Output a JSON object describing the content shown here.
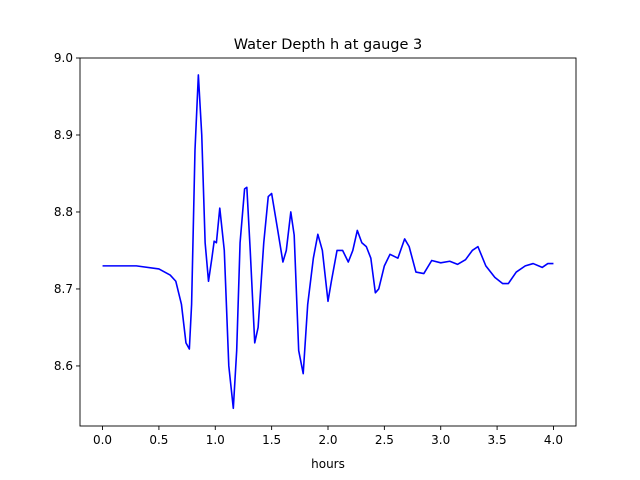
{
  "chart_data": {
    "type": "line",
    "title": "Water Depth h at gauge 3",
    "xlabel": "hours",
    "ylabel": "",
    "xlim": [
      -0.2,
      4.2
    ],
    "ylim": [
      8.522,
      9.0
    ],
    "xticks": [
      0.0,
      0.5,
      1.0,
      1.5,
      2.0,
      2.5,
      3.0,
      3.5,
      4.0
    ],
    "xtick_labels": [
      "0.0",
      "0.5",
      "1.0",
      "1.5",
      "2.0",
      "2.5",
      "3.0",
      "3.5",
      "4.0"
    ],
    "yticks": [
      8.6,
      8.7,
      8.8,
      8.9,
      9.0
    ],
    "ytick_labels": [
      "8.6",
      "8.7",
      "8.8",
      "8.9",
      "9.0"
    ],
    "grid": false,
    "series": [
      {
        "color": "#0000ff",
        "points": [
          [
            0.0,
            8.73
          ],
          [
            0.3,
            8.73
          ],
          [
            0.5,
            8.726
          ],
          [
            0.6,
            8.718
          ],
          [
            0.65,
            8.71
          ],
          [
            0.7,
            8.68
          ],
          [
            0.74,
            8.63
          ],
          [
            0.77,
            8.622
          ],
          [
            0.79,
            8.68
          ],
          [
            0.82,
            8.88
          ],
          [
            0.85,
            8.978
          ],
          [
            0.88,
            8.9
          ],
          [
            0.91,
            8.76
          ],
          [
            0.94,
            8.71
          ],
          [
            0.97,
            8.74
          ],
          [
            0.99,
            8.762
          ],
          [
            1.01,
            8.76
          ],
          [
            1.04,
            8.805
          ],
          [
            1.08,
            8.75
          ],
          [
            1.12,
            8.6
          ],
          [
            1.16,
            8.545
          ],
          [
            1.19,
            8.62
          ],
          [
            1.22,
            8.76
          ],
          [
            1.26,
            8.83
          ],
          [
            1.28,
            8.832
          ],
          [
            1.31,
            8.75
          ],
          [
            1.35,
            8.63
          ],
          [
            1.38,
            8.65
          ],
          [
            1.43,
            8.76
          ],
          [
            1.47,
            8.82
          ],
          [
            1.5,
            8.824
          ],
          [
            1.55,
            8.78
          ],
          [
            1.6,
            8.735
          ],
          [
            1.63,
            8.75
          ],
          [
            1.67,
            8.8
          ],
          [
            1.7,
            8.77
          ],
          [
            1.74,
            8.62
          ],
          [
            1.78,
            8.59
          ],
          [
            1.82,
            8.68
          ],
          [
            1.87,
            8.74
          ],
          [
            1.91,
            8.771
          ],
          [
            1.95,
            8.75
          ],
          [
            2.0,
            8.684
          ],
          [
            2.03,
            8.71
          ],
          [
            2.08,
            8.75
          ],
          [
            2.13,
            8.75
          ],
          [
            2.18,
            8.735
          ],
          [
            2.22,
            8.75
          ],
          [
            2.26,
            8.776
          ],
          [
            2.3,
            8.76
          ],
          [
            2.34,
            8.755
          ],
          [
            2.38,
            8.74
          ],
          [
            2.42,
            8.695
          ],
          [
            2.45,
            8.7
          ],
          [
            2.5,
            8.73
          ],
          [
            2.55,
            8.745
          ],
          [
            2.62,
            8.74
          ],
          [
            2.68,
            8.765
          ],
          [
            2.72,
            8.755
          ],
          [
            2.78,
            8.722
          ],
          [
            2.85,
            8.72
          ],
          [
            2.92,
            8.737
          ],
          [
            3.0,
            8.734
          ],
          [
            3.08,
            8.736
          ],
          [
            3.15,
            8.732
          ],
          [
            3.22,
            8.738
          ],
          [
            3.28,
            8.75
          ],
          [
            3.33,
            8.755
          ],
          [
            3.4,
            8.73
          ],
          [
            3.48,
            8.715
          ],
          [
            3.55,
            8.707
          ],
          [
            3.6,
            8.707
          ],
          [
            3.67,
            8.722
          ],
          [
            3.75,
            8.73
          ],
          [
            3.82,
            8.733
          ],
          [
            3.9,
            8.728
          ],
          [
            3.95,
            8.733
          ],
          [
            4.0,
            8.733
          ]
        ]
      }
    ]
  }
}
